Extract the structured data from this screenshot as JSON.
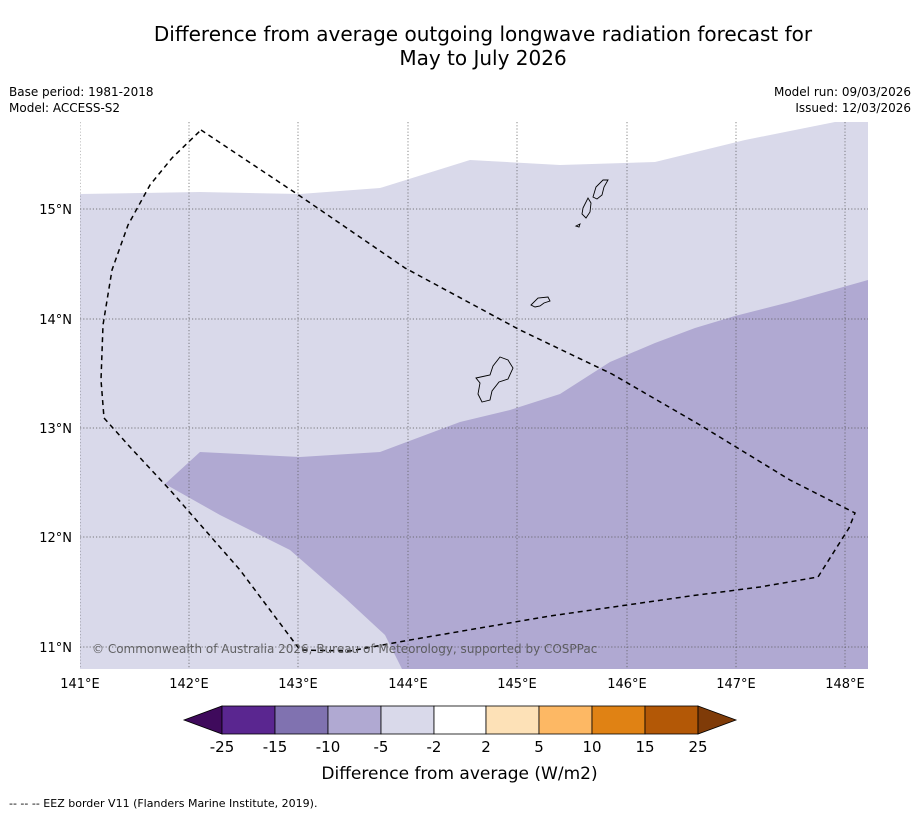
{
  "title": {
    "line1": "Difference from average outgoing longwave radiation forecast for",
    "line2": "May to July 2026"
  },
  "meta": {
    "base_period": "Base period: 1981-2018",
    "model": "Model: ACCESS-S2",
    "model_run": "Model run: 09/03/2026",
    "issued": "Issued: 12/03/2026"
  },
  "map": {
    "copyright": "© Commonwealth of Australia 2026, Bureau of Meteorology, supported by COSPPac",
    "lon_labels": [
      "141°E",
      "142°E",
      "143°E",
      "144°E",
      "145°E",
      "146°E",
      "147°E",
      "148°E"
    ],
    "lat_labels": [
      "15°N",
      "14°N",
      "13°N",
      "12°N",
      "11°N"
    ],
    "colors": {
      "band_neg5_neg2": "#d9d9ea",
      "band_neg10_neg5": "#b0a9d2",
      "eez_line": "#000000",
      "gridline": "#555555"
    }
  },
  "colorbar": {
    "label": "Difference from average (W/m2)",
    "ticks": [
      "-25",
      "-15",
      "-10",
      "-5",
      "-2",
      "2",
      "5",
      "10",
      "15",
      "25"
    ],
    "colors": [
      "#3f0a5c",
      "#5a2690",
      "#8072b0",
      "#b0a9d2",
      "#d9d9ea",
      "#ffffff",
      "#fde1b7",
      "#fdb864",
      "#e08214",
      "#b35806",
      "#7f3b08"
    ]
  },
  "footer": "--  --  -- EEZ border V11 (Flanders Marine Institute, 2019)."
}
